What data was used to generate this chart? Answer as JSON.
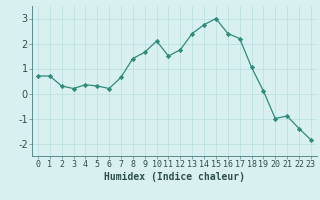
{
  "x": [
    0,
    1,
    2,
    3,
    4,
    5,
    6,
    7,
    8,
    9,
    10,
    11,
    12,
    13,
    14,
    15,
    16,
    17,
    18,
    19,
    20,
    21,
    22,
    23
  ],
  "y": [
    0.7,
    0.7,
    0.3,
    0.2,
    0.35,
    0.3,
    0.2,
    0.65,
    1.4,
    1.65,
    2.1,
    1.5,
    1.75,
    2.4,
    2.75,
    3.0,
    2.4,
    2.2,
    1.05,
    0.1,
    -1.0,
    -0.9,
    -1.4,
    -1.85
  ],
  "xlabel": "Humidex (Indice chaleur)",
  "ylim": [
    -2.5,
    3.5
  ],
  "yticks": [
    -2,
    -1,
    0,
    1,
    2,
    3
  ],
  "xticks": [
    0,
    1,
    2,
    3,
    4,
    5,
    6,
    7,
    8,
    9,
    10,
    11,
    12,
    13,
    14,
    15,
    16,
    17,
    18,
    19,
    20,
    21,
    22,
    23
  ],
  "line_color": "#2e8b7a",
  "marker_color": "#2e8b7a",
  "bg_color": "#d9f0f0",
  "grid_color": "#b8dede",
  "xlabel_fontsize": 7,
  "tick_fontsize": 6
}
